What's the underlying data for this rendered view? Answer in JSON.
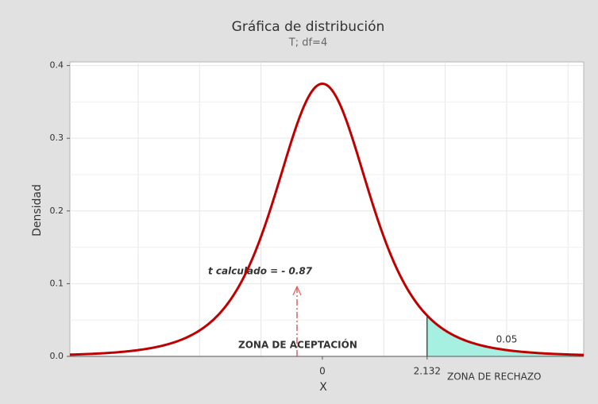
{
  "chart_data": {
    "type": "t_distribution",
    "title": "Gráfica de distribución",
    "subtitle": "T; df=4",
    "df": 4,
    "x_label": "X",
    "y_label": "Densidad",
    "xlim": [
      -5.14,
      5.32
    ],
    "ylim": [
      0,
      0.405
    ],
    "xticks": [
      0,
      2.132
    ],
    "yticks": [
      {
        "value": 0,
        "label": "0.0"
      },
      0.1,
      0.2,
      0.3,
      0.4
    ],
    "x_minor_grid": [
      -3.75,
      -2.5,
      -1.25,
      1.25,
      2.5,
      3.75,
      5
    ],
    "y_minor_grid": [
      0.05,
      0.15,
      0.25,
      0.35
    ],
    "grid": true,
    "curve_color": "#c00000",
    "tail_color": "#a6f0e2",
    "tail_area": 0.05,
    "annotations": {
      "t_calculated": "t calculado = - 0.87",
      "acceptance": "ZONA DE ACEPTACIÓN",
      "rejection": "ZONA DE RECHAZO"
    }
  }
}
